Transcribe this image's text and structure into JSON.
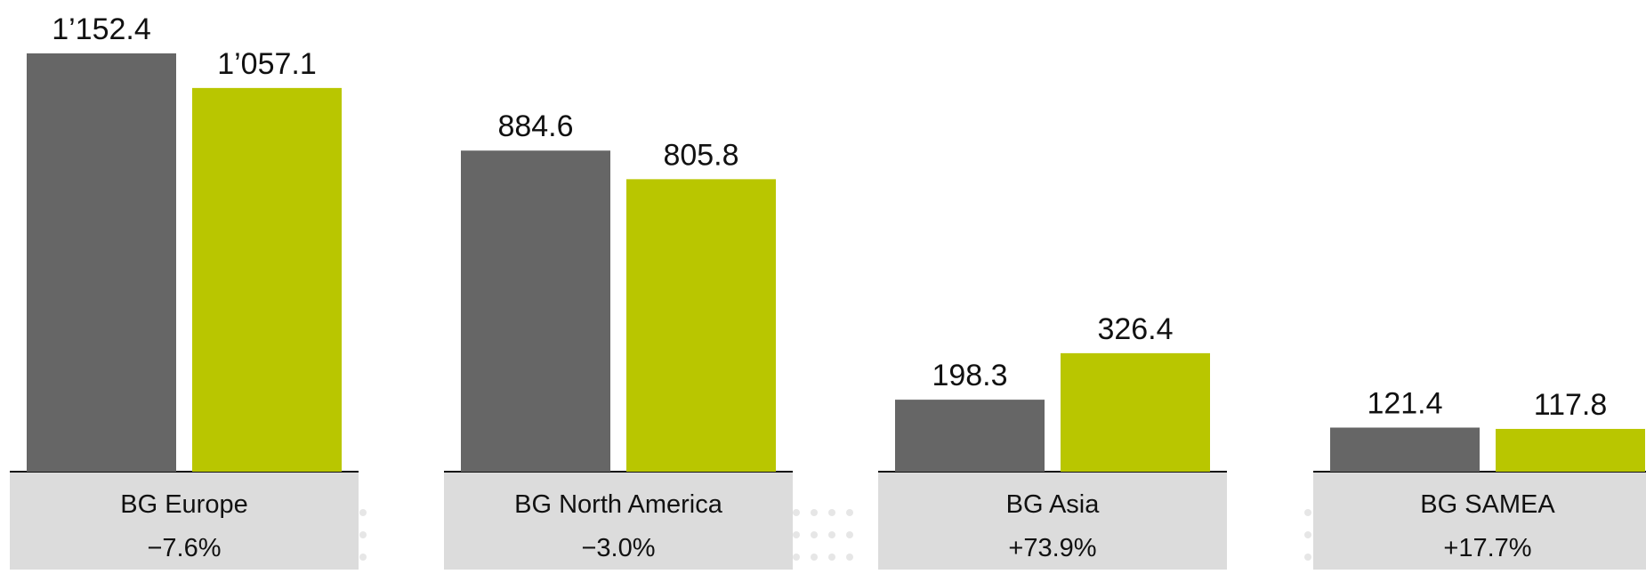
{
  "chart_data": {
    "type": "bar",
    "categories": [
      "BG Europe",
      "BG North America",
      "BG Asia",
      "BG SAMEA"
    ],
    "series": [
      {
        "values": [
          1152.4,
          884.6,
          198.3,
          121.4
        ],
        "color": "#666666"
      },
      {
        "values": [
          1057.1,
          805.8,
          326.4,
          117.8
        ],
        "color": "#b9c600"
      }
    ],
    "data_labels": [
      [
        "1’152.4",
        "884.6",
        "198.3",
        "121.4"
      ],
      [
        "1’057.1",
        "805.8",
        "326.4",
        "117.8"
      ]
    ],
    "changes": [
      "−7.6%",
      "−3.0%",
      "+73.9%",
      "+17.7%"
    ],
    "ylim": [
      0,
      1152.4
    ],
    "grid": false,
    "legend": "none"
  },
  "colors": {
    "category_box": "#dcdcdc",
    "baseline": "#111111",
    "decor_dots": "#e6e6e6"
  }
}
